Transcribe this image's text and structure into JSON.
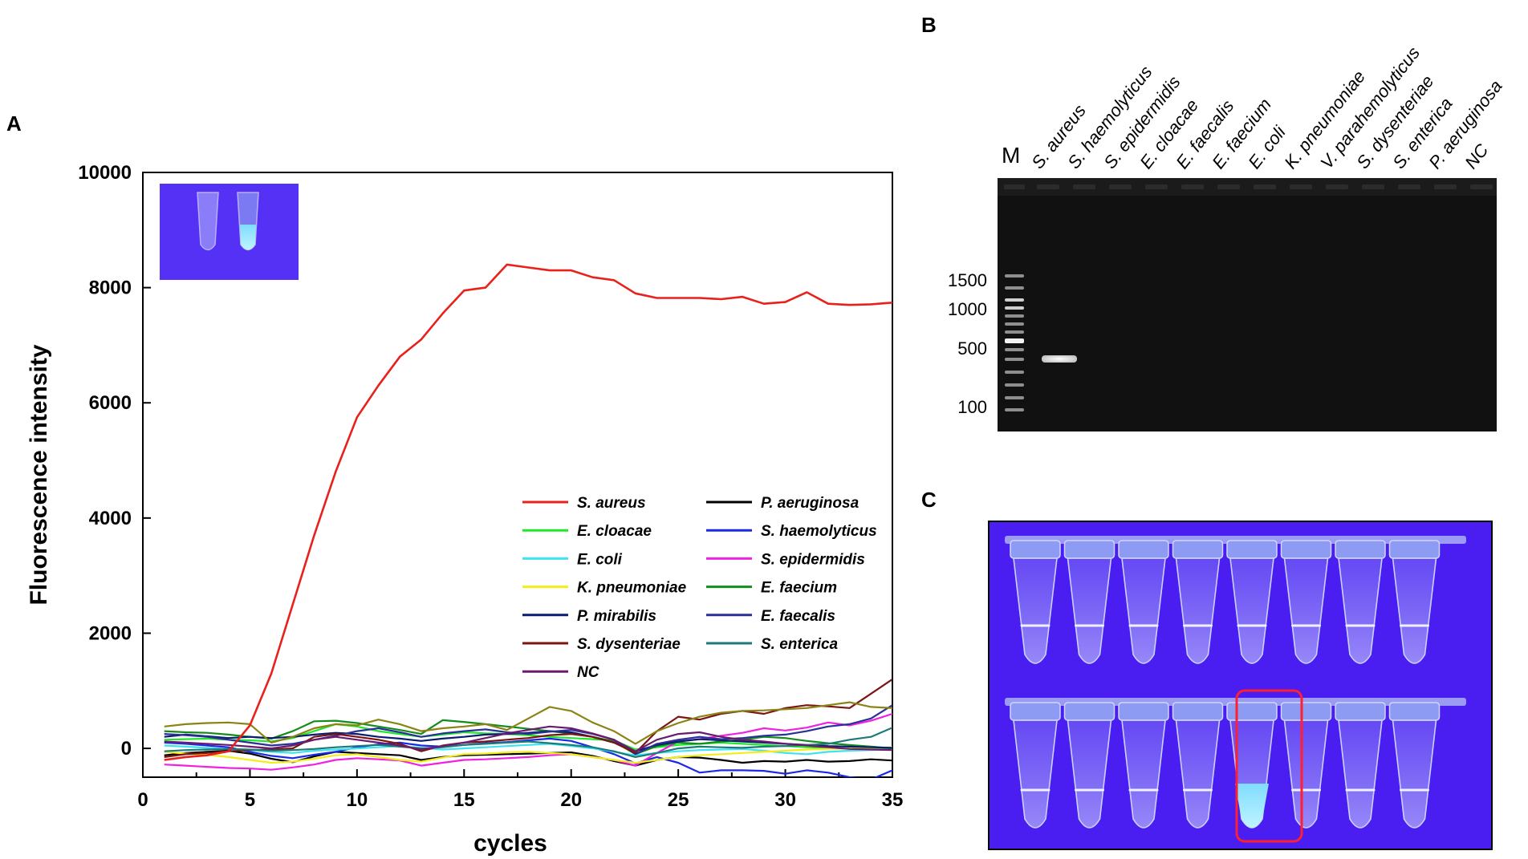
{
  "panels": {
    "a": {
      "letter": "A"
    },
    "b": {
      "letter": "B"
    },
    "c": {
      "letter": "C"
    }
  },
  "chart_data": {
    "type": "line",
    "title": "",
    "xlabel": "cycles",
    "ylabel": "Fluorescence intensity",
    "xlim": [
      0,
      35
    ],
    "ylim": [
      -500,
      10000
    ],
    "xticks": [
      0,
      5,
      10,
      15,
      20,
      25,
      30,
      35
    ],
    "yticks": [
      0,
      2000,
      4000,
      6000,
      8000,
      10000
    ],
    "x": [
      1,
      2,
      3,
      4,
      5,
      6,
      7,
      8,
      9,
      10,
      11,
      12,
      13,
      14,
      15,
      16,
      17,
      18,
      19,
      20,
      21,
      22,
      23,
      24,
      25,
      26,
      27,
      28,
      29,
      30,
      31,
      32,
      33,
      34,
      35
    ],
    "legend_columns": 2,
    "series": [
      {
        "name": "S. aureus",
        "color": "#e8211b",
        "values": [
          -200,
          -150,
          -120,
          -50,
          400,
          1300,
          2500,
          3700,
          4800,
          5750,
          6300,
          6800,
          7100,
          7550,
          7950,
          8000,
          8400,
          8350,
          8300,
          8300,
          8180,
          8130,
          7900,
          7820,
          7820,
          7820,
          7800,
          7840,
          7720,
          7750,
          7920,
          7720,
          7700,
          7710,
          7740
        ]
      },
      {
        "name": "P. aeruginosa",
        "color": "#000000",
        "values": [
          -120,
          -80,
          -60,
          -40,
          -90,
          -180,
          -240,
          -140,
          -60,
          -80,
          -100,
          -120,
          -200,
          -150,
          -120,
          -110,
          -100,
          -90,
          -80,
          -70,
          -130,
          -220,
          -300,
          -200,
          -150,
          -160,
          -200,
          -250,
          -220,
          -230,
          -200,
          -230,
          -220,
          -190,
          -210
        ]
      },
      {
        "name": "E. cloacae",
        "color": "#1ee82a",
        "values": [
          150,
          160,
          170,
          150,
          140,
          120,
          180,
          300,
          420,
          380,
          300,
          250,
          200,
          240,
          280,
          260,
          250,
          230,
          200,
          180,
          160,
          140,
          -20,
          20,
          60,
          80,
          100,
          80,
          60,
          40,
          20,
          10,
          0,
          -10,
          -20
        ]
      },
      {
        "name": "S. haemolyticus",
        "color": "#1a29e6",
        "values": [
          100,
          80,
          50,
          20,
          -60,
          -130,
          -170,
          -110,
          -60,
          20,
          70,
          100,
          50,
          30,
          60,
          90,
          110,
          140,
          170,
          130,
          20,
          -100,
          -260,
          -150,
          -250,
          -420,
          -380,
          -380,
          -390,
          -440,
          -380,
          -420,
          -500,
          -540,
          -380
        ]
      },
      {
        "name": "E. coli",
        "color": "#3fe3f0",
        "values": [
          50,
          30,
          10,
          -10,
          -30,
          -60,
          -80,
          -40,
          -20,
          0,
          20,
          40,
          10,
          -20,
          0,
          20,
          40,
          60,
          80,
          40,
          0,
          -60,
          -120,
          -80,
          -50,
          -30,
          -20,
          -10,
          -40,
          -80,
          -100,
          -60,
          -40,
          -30,
          -20
        ]
      },
      {
        "name": "S. epidermidis",
        "color": "#ee22e0",
        "values": [
          -280,
          -300,
          -320,
          -340,
          -350,
          -370,
          -330,
          -280,
          -200,
          -170,
          -190,
          -210,
          -300,
          -250,
          -200,
          -190,
          -170,
          -150,
          -120,
          -100,
          -150,
          -200,
          -300,
          -80,
          120,
          160,
          220,
          270,
          350,
          310,
          360,
          450,
          400,
          480,
          600
        ]
      },
      {
        "name": "K. pneumoniae",
        "color": "#f2ee1c",
        "values": [
          -60,
          -90,
          -110,
          -150,
          -200,
          -250,
          -230,
          -180,
          -120,
          -100,
          -150,
          -200,
          -230,
          -160,
          -100,
          -90,
          -70,
          -60,
          -80,
          -100,
          -150,
          -200,
          -250,
          -200,
          -150,
          -120,
          -100,
          -80,
          -60,
          -40,
          -20,
          -10,
          0,
          10,
          20
        ]
      },
      {
        "name": "E.  faecium",
        "color": "#148c1c",
        "values": [
          300,
          280,
          270,
          240,
          200,
          170,
          300,
          470,
          480,
          440,
          380,
          320,
          250,
          490,
          460,
          420,
          380,
          340,
          300,
          260,
          200,
          120,
          -100,
          40,
          100,
          80,
          120,
          150,
          200,
          180,
          130,
          90,
          60,
          30,
          0
        ]
      },
      {
        "name": "P. mirabilis",
        "color": "#0b1c6f",
        "values": [
          200,
          240,
          210,
          180,
          200,
          180,
          200,
          240,
          270,
          250,
          200,
          170,
          130,
          170,
          200,
          240,
          250,
          270,
          300,
          280,
          200,
          100,
          -50,
          60,
          120,
          160,
          140,
          120,
          100,
          80,
          60,
          40,
          30,
          20,
          10
        ]
      },
      {
        "name": "E. faecalis",
        "color": "#2b3096",
        "values": [
          250,
          230,
          200,
          150,
          100,
          50,
          80,
          150,
          220,
          300,
          350,
          280,
          200,
          260,
          300,
          330,
          280,
          250,
          290,
          320,
          250,
          150,
          -100,
          80,
          150,
          200,
          160,
          180,
          220,
          240,
          300,
          380,
          420,
          520,
          750
        ]
      },
      {
        "name": "S. dysenteriae",
        "color": "#7a1512",
        "values": [
          -150,
          -100,
          -80,
          -50,
          -30,
          -20,
          0,
          200,
          250,
          200,
          150,
          80,
          -50,
          50,
          100,
          120,
          150,
          180,
          230,
          250,
          200,
          100,
          -80,
          300,
          550,
          500,
          600,
          650,
          600,
          700,
          750,
          730,
          700,
          950,
          1200
        ]
      },
      {
        "name": "S. enterica",
        "color": "#1c7a78",
        "values": [
          -50,
          -30,
          -20,
          -10,
          -20,
          -40,
          -30,
          -10,
          20,
          40,
          60,
          30,
          0,
          20,
          60,
          80,
          100,
          120,
          90,
          60,
          20,
          -50,
          -150,
          -80,
          0,
          30,
          20,
          10,
          30,
          40,
          60,
          80,
          150,
          200,
          360
        ]
      },
      {
        "name": "NC",
        "color": "#6b1b6e",
        "values": [
          120,
          100,
          80,
          60,
          30,
          0,
          50,
          150,
          200,
          150,
          100,
          50,
          -20,
          40,
          100,
          180,
          260,
          320,
          380,
          350,
          260,
          150,
          -50,
          150,
          250,
          280,
          200,
          150,
          120,
          80,
          50,
          20,
          -10,
          -20,
          -30
        ]
      },
      {
        "name": "",
        "color": "#8a8414",
        "values": [
          380,
          420,
          440,
          450,
          420,
          100,
          200,
          350,
          420,
          400,
          500,
          420,
          300,
          350,
          380,
          420,
          320,
          520,
          720,
          650,
          450,
          300,
          80,
          300,
          440,
          550,
          620,
          650,
          660,
          680,
          700,
          750,
          800,
          720,
          700
        ]
      }
    ]
  },
  "gel": {
    "marker_label": "M",
    "lanes": [
      "S. aureus",
      "S. haemolyticus",
      "S. epidermidis",
      "E. cloacae",
      "E. faecalis",
      "E. faecium",
      "E. coli",
      "K. pneumoniae",
      "V. parahemolyticus",
      "S. dysenteriae",
      "S. enterica",
      "P. aeruginosa",
      "NC"
    ],
    "ladder_labels": [
      "1500",
      "1000",
      "500",
      "100"
    ],
    "positive_lane": "S. aureus"
  },
  "tubes": {
    "rows": 2,
    "per_row": 8,
    "highlight": {
      "row": 2,
      "index": 5
    }
  }
}
